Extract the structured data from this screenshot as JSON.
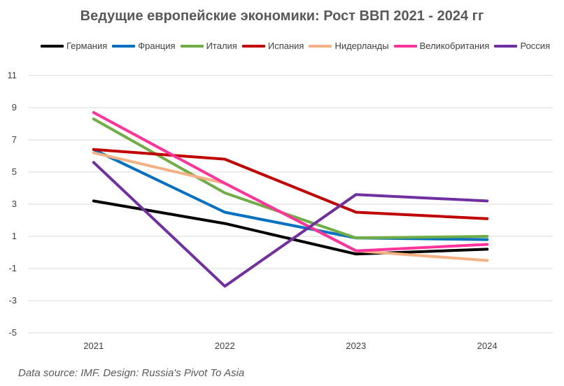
{
  "chart_data": {
    "type": "line",
    "title": "Ведущие европейские экономики: Рост ВВП 2021 - 2024 гг",
    "xlabel": "",
    "ylabel": "",
    "categories": [
      "2021",
      "2022",
      "2023",
      "2024"
    ],
    "ylim": [
      -5,
      11
    ],
    "yticks": [
      11,
      9,
      7,
      5,
      3,
      1,
      -1,
      -3,
      -5
    ],
    "grid": true,
    "legend_position": "top",
    "series": [
      {
        "name": "Германия",
        "color": "#000000",
        "values": [
          3.2,
          1.8,
          -0.1,
          0.2
        ]
      },
      {
        "name": "Франция",
        "color": "#0070C0",
        "values": [
          6.4,
          2.5,
          0.9,
          0.8
        ]
      },
      {
        "name": "Италия",
        "color": "#70AD47",
        "values": [
          8.3,
          3.7,
          0.9,
          1.0
        ]
      },
      {
        "name": "Испания",
        "color": "#C00000",
        "values": [
          6.4,
          5.8,
          2.5,
          2.1
        ]
      },
      {
        "name": "Нидерланды",
        "color": "#F4B183",
        "values": [
          6.2,
          4.3,
          0.1,
          -0.5
        ]
      },
      {
        "name": "Великобритания",
        "color": "#FF3399",
        "values": [
          8.7,
          4.3,
          0.1,
          0.5
        ]
      },
      {
        "name": "Россия",
        "color": "#7030A0",
        "values": [
          5.6,
          -2.1,
          3.6,
          3.2
        ]
      }
    ]
  },
  "footer": {
    "source": "Data source: IMF.  Design: Russia's Pivot To Asia"
  }
}
